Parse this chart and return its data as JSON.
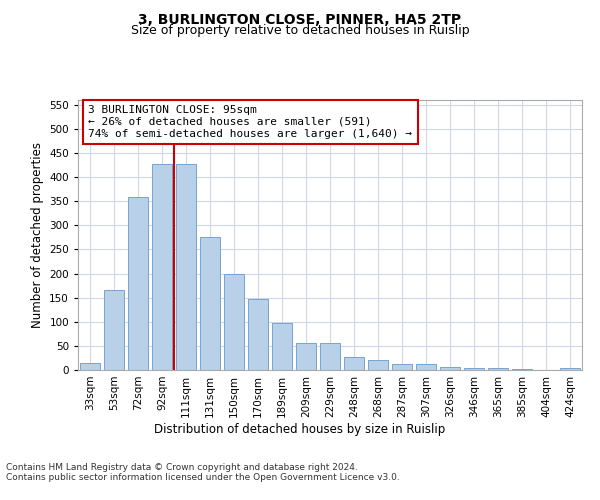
{
  "title": "3, BURLINGTON CLOSE, PINNER, HA5 2TP",
  "subtitle": "Size of property relative to detached houses in Ruislip",
  "xlabel": "Distribution of detached houses by size in Ruislip",
  "ylabel": "Number of detached properties",
  "categories": [
    "33sqm",
    "53sqm",
    "72sqm",
    "92sqm",
    "111sqm",
    "131sqm",
    "150sqm",
    "170sqm",
    "189sqm",
    "209sqm",
    "229sqm",
    "248sqm",
    "268sqm",
    "287sqm",
    "307sqm",
    "326sqm",
    "346sqm",
    "365sqm",
    "385sqm",
    "404sqm",
    "424sqm"
  ],
  "values": [
    14,
    165,
    358,
    428,
    428,
    275,
    200,
    148,
    97,
    55,
    55,
    28,
    20,
    12,
    12,
    7,
    5,
    5,
    2,
    0,
    4
  ],
  "bar_color": "#b8d0e8",
  "bar_edge_color": "#6699cc",
  "vline_x": 3.5,
  "vline_color": "#cc0000",
  "annotation_text": "3 BURLINGTON CLOSE: 95sqm\n← 26% of detached houses are smaller (591)\n74% of semi-detached houses are larger (1,640) →",
  "annotation_box_color": "#ffffff",
  "annotation_box_edge_color": "#cc0000",
  "ylim": [
    0,
    560
  ],
  "yticks": [
    0,
    50,
    100,
    150,
    200,
    250,
    300,
    350,
    400,
    450,
    500,
    550
  ],
  "footer_text": "Contains HM Land Registry data © Crown copyright and database right 2024.\nContains public sector information licensed under the Open Government Licence v3.0.",
  "background_color": "#ffffff",
  "grid_color": "#d0d8e8",
  "title_fontsize": 10,
  "subtitle_fontsize": 9,
  "axis_label_fontsize": 8.5,
  "tick_fontsize": 7.5,
  "footer_fontsize": 6.5,
  "annotation_fontsize": 8
}
